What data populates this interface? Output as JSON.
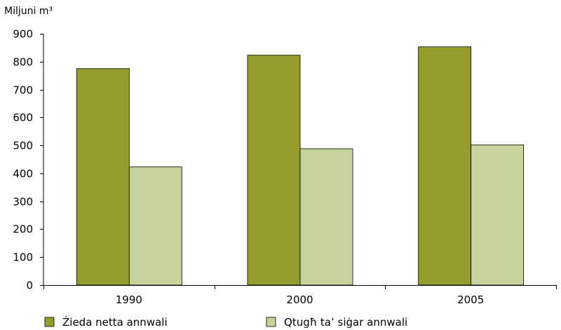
{
  "chart_data": {
    "type": "bar",
    "title": "",
    "unit_label": "Miljuni m³",
    "xlabel": "",
    "ylabel": "",
    "ylim": [
      0,
      900
    ],
    "yticks": [
      0,
      100,
      200,
      300,
      400,
      500,
      600,
      700,
      800,
      900
    ],
    "categories": [
      "1990",
      "2000",
      "2005"
    ],
    "series": [
      {
        "name": "Żieda netta annwali",
        "color": "#949d2e",
        "values": [
          775,
          823,
          853
        ]
      },
      {
        "name": "Qtugħ ta’ siġar annwali",
        "color": "#c5d39c",
        "values": [
          423,
          488,
          502
        ]
      }
    ],
    "grid": false,
    "legend_position": "bottom-left"
  }
}
